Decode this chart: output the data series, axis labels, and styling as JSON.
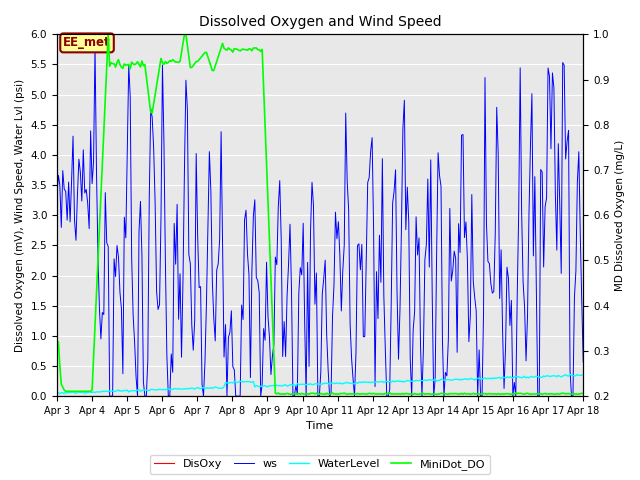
{
  "title": "Dissolved Oxygen and Wind Speed",
  "ylabel_left": "Dissolved Oxygen (mV), Wind Speed, Water Lvl (psi)",
  "ylabel_right": "MD Dissolved Oxygen (mg/L)",
  "xlabel": "Time",
  "ylim_left": [
    0.0,
    6.0
  ],
  "ylim_right": [
    0.2,
    1.0
  ],
  "xtick_labels": [
    "Apr 3",
    "Apr 4",
    "Apr 5",
    "Apr 6",
    "Apr 7",
    "Apr 8",
    "Apr 9",
    "Apr 10",
    "Apr 11",
    "Apr 12",
    "Apr 13",
    "Apr 14",
    "Apr 15",
    "Apr 16",
    "Apr 17",
    "Apr 18"
  ],
  "annotation_text": "EE_met",
  "legend_labels": [
    "DisOxy",
    "ws",
    "WaterLevel",
    "MiniDot_DO"
  ],
  "background_color": "#e8e8e8",
  "grid_color": "white",
  "figsize": [
    6.4,
    4.8
  ],
  "dpi": 100
}
